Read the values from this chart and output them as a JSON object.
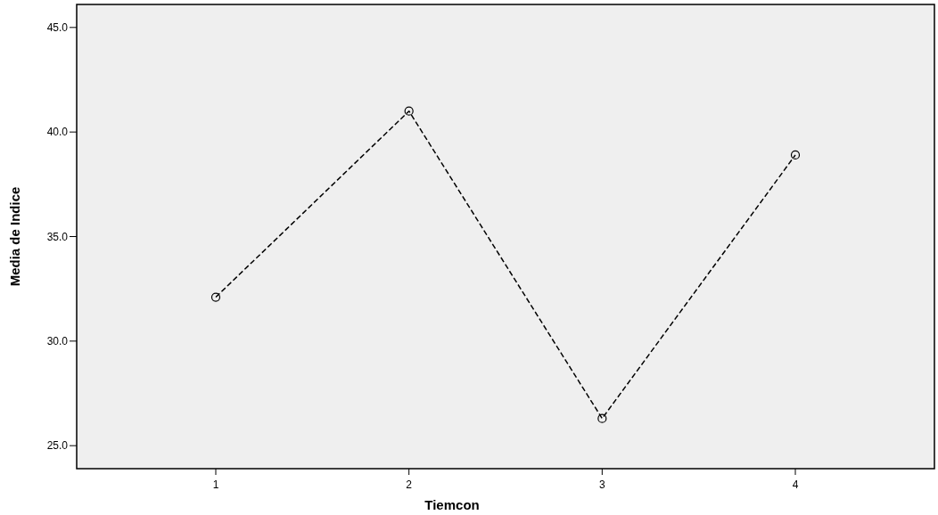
{
  "chart_data": {
    "type": "line",
    "xlabel": "Tiemcon",
    "ylabel": "Media de Indice",
    "categories": [
      "1",
      "2",
      "3",
      "4"
    ],
    "series": [
      {
        "color": "#000000",
        "values": [
          32.1,
          41.0,
          26.3,
          38.9
        ]
      }
    ],
    "ylim": [
      23.9,
      46.1
    ],
    "yticks": [
      {
        "value": 25,
        "label": "25.0"
      },
      {
        "value": 30,
        "label": "30.0"
      },
      {
        "value": 35,
        "label": "35.0"
      },
      {
        "value": 40,
        "label": "40.0"
      },
      {
        "value": 45,
        "label": "45.0"
      }
    ],
    "grid": false,
    "marker": "circle",
    "line_style": "dashed"
  }
}
